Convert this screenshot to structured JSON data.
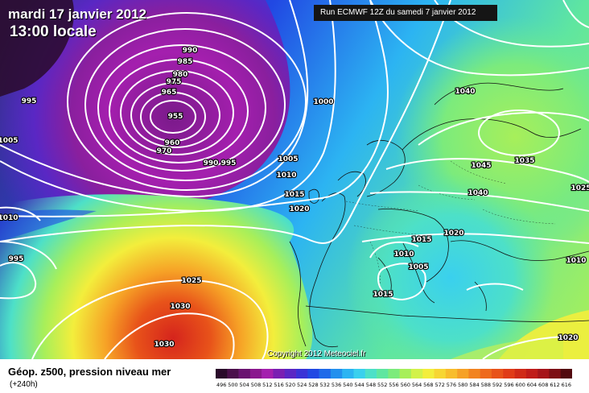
{
  "header": {
    "date": "mardi 17 janvier 2012",
    "time": "13:00 locale",
    "run": "Run ECMWF 12Z du samedi 7 janvier 2012"
  },
  "copyright": "Copyright 2012 Meteociel.fr",
  "footer": {
    "title": "Géop. z500, pression niveau mer",
    "forecast": "(+240h)"
  },
  "isobar_labels": [
    "990",
    "985",
    "980",
    "975",
    "965",
    "955",
    "960",
    "970",
    "995",
    "990",
    "995",
    "1005",
    "1000",
    "1005",
    "1010",
    "1015",
    "1020",
    "1010",
    "995",
    "1025",
    "1030",
    "1030",
    "1040",
    "1045",
    "1035",
    "1040",
    "1025",
    "1020",
    "1015",
    "1010",
    "1005",
    "1015",
    "1010",
    "1020"
  ],
  "legend": {
    "values": [
      "496",
      "500",
      "504",
      "508",
      "512",
      "516",
      "520",
      "524",
      "528",
      "532",
      "536",
      "540",
      "544",
      "548",
      "552",
      "556",
      "560",
      "564",
      "568",
      "572",
      "576",
      "580",
      "584",
      "588",
      "592",
      "596",
      "600",
      "604",
      "608",
      "612",
      "616"
    ],
    "colors": [
      "#2a0a2a",
      "#4b0f4b",
      "#6a1370",
      "#8a188e",
      "#a41fae",
      "#7a1fb2",
      "#5a27c4",
      "#3a32d6",
      "#2148e3",
      "#1f6ae9",
      "#2390ee",
      "#2cb4f2",
      "#3ad0ee",
      "#4de0c8",
      "#5fe6a0",
      "#7ceb7c",
      "#a7ef5a",
      "#d2f24a",
      "#f3ee3c",
      "#f7d633",
      "#f8bd2c",
      "#f6a126",
      "#f28421",
      "#ee6a1d",
      "#e8531a",
      "#e03c18",
      "#d02a18",
      "#c01c1a",
      "#a6141a",
      "#7d0f15",
      "#520a0f"
    ]
  }
}
